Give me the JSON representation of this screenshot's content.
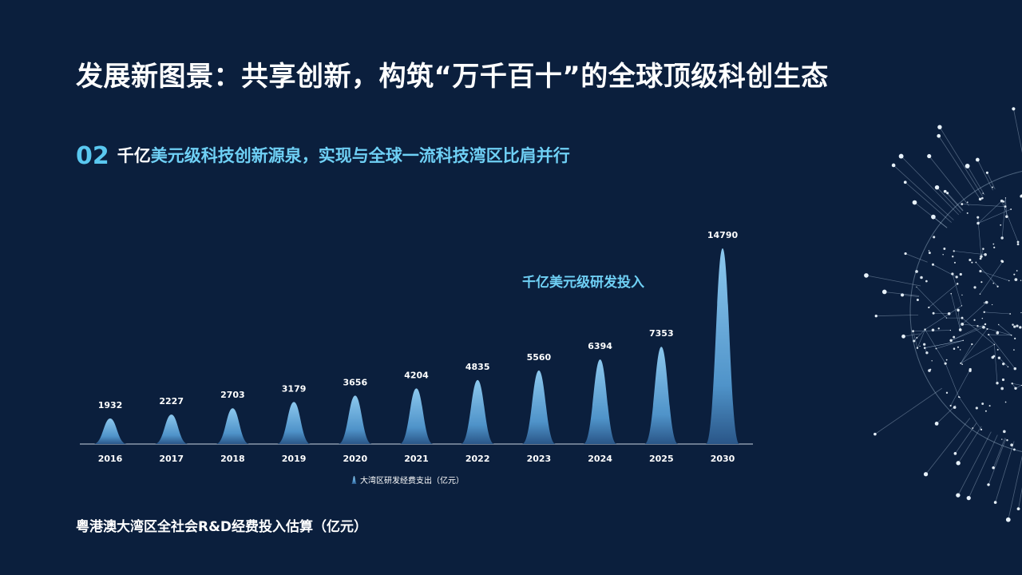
{
  "title": "发展新图景：共享创新，构筑“万千百十”的全球顶级科创生态",
  "subtitle": {
    "number": "02",
    "part_white": "千亿",
    "part_cyan": "美元级科技创新源泉，实现与全球一流科技湾区比肩并行"
  },
  "annotation": "千亿美元级研发投入",
  "source_note": "粤港澳大湾区全社会R&D经费投入估算（亿元）",
  "colors": {
    "background": "#0b1f3d",
    "accent_cyan": "#6fd0f5",
    "bar_top": "#7bbce6",
    "bar_bottom": "#2f5f93"
  },
  "chart_data": {
    "type": "area",
    "shape": "bell-peaks",
    "categories": [
      "2016",
      "2017",
      "2018",
      "2019",
      "2020",
      "2021",
      "2022",
      "2023",
      "2024",
      "2025",
      "2030"
    ],
    "series": [
      {
        "name": "大湾区研发经费支出（亿元）",
        "values": [
          1932,
          2227,
          2703,
          3179,
          3656,
          4204,
          4835,
          5560,
          6394,
          7353,
          14790
        ]
      }
    ],
    "data_labels": [
      "1932",
      "2227",
      "2703",
      "3179",
      "3656",
      "4204",
      "4835",
      "5560",
      "6394",
      "7353",
      "14790"
    ],
    "legend": "大湾区研发经费支出（亿元）",
    "legend_position": "bottom",
    "ylim": [
      0,
      16000
    ],
    "grid": false,
    "xlabel": "",
    "ylabel": ""
  }
}
